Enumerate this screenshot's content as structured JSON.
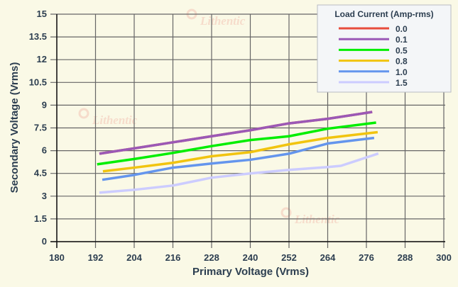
{
  "chart_data": {
    "type": "line",
    "xlabel": "Primary Voltage (Vrms)",
    "ylabel": "Secondary Voltage (Vrms)",
    "xlim": [
      180,
      300
    ],
    "ylim": [
      0,
      15
    ],
    "xticks": [
      "180",
      "192",
      "204",
      "216",
      "228",
      "240",
      "252",
      "264",
      "276",
      "288",
      "300"
    ],
    "yticks": [
      "0",
      "1.5",
      "3",
      "4.5",
      "6",
      "7.5",
      "9",
      "10.5",
      "12",
      "13.5",
      "15"
    ],
    "grid": true,
    "legend": {
      "title": "Load Current (Amp-rms)",
      "placement": "top-right"
    },
    "series": [
      {
        "name": "0.0",
        "color": "#e74c3c",
        "x": [
          193.2,
          204,
          216,
          228,
          240,
          252,
          264,
          277.8
        ],
        "y": [
          5.8,
          6.15,
          6.55,
          6.95,
          7.35,
          7.8,
          8.1,
          8.55
        ]
      },
      {
        "name": "0.1",
        "color": "#9b59b6",
        "x": [
          193.2,
          204,
          216,
          228,
          240,
          252,
          264,
          277.8
        ],
        "y": [
          5.8,
          6.15,
          6.55,
          6.95,
          7.35,
          7.8,
          8.1,
          8.55
        ]
      },
      {
        "name": "0.5",
        "color": "#00ee00",
        "x": [
          192.5,
          204,
          216,
          228,
          240,
          252,
          264,
          279
        ],
        "y": [
          5.1,
          5.45,
          5.85,
          6.3,
          6.7,
          6.95,
          7.45,
          7.85
        ]
      },
      {
        "name": "0.8",
        "color": "#f1c40f",
        "x": [
          194.3,
          204,
          216,
          228,
          240,
          252,
          264,
          279.5
        ],
        "y": [
          4.64,
          4.88,
          5.2,
          5.63,
          5.9,
          6.42,
          6.84,
          7.22
        ]
      },
      {
        "name": "1.0",
        "color": "#6495ed",
        "x": [
          194.1,
          204,
          216,
          228,
          240,
          252,
          264,
          278.4
        ],
        "y": [
          4.08,
          4.4,
          4.88,
          5.15,
          5.4,
          5.8,
          6.47,
          6.84
        ]
      },
      {
        "name": "1.5",
        "color": "#ccccff",
        "x": [
          193.2,
          204,
          216,
          228,
          240,
          252,
          264,
          268.1,
          279.7
        ],
        "y": [
          3.23,
          3.42,
          3.7,
          4.22,
          4.5,
          4.73,
          4.92,
          5.0,
          5.81
        ]
      }
    ]
  },
  "watermark": "Lithentic"
}
